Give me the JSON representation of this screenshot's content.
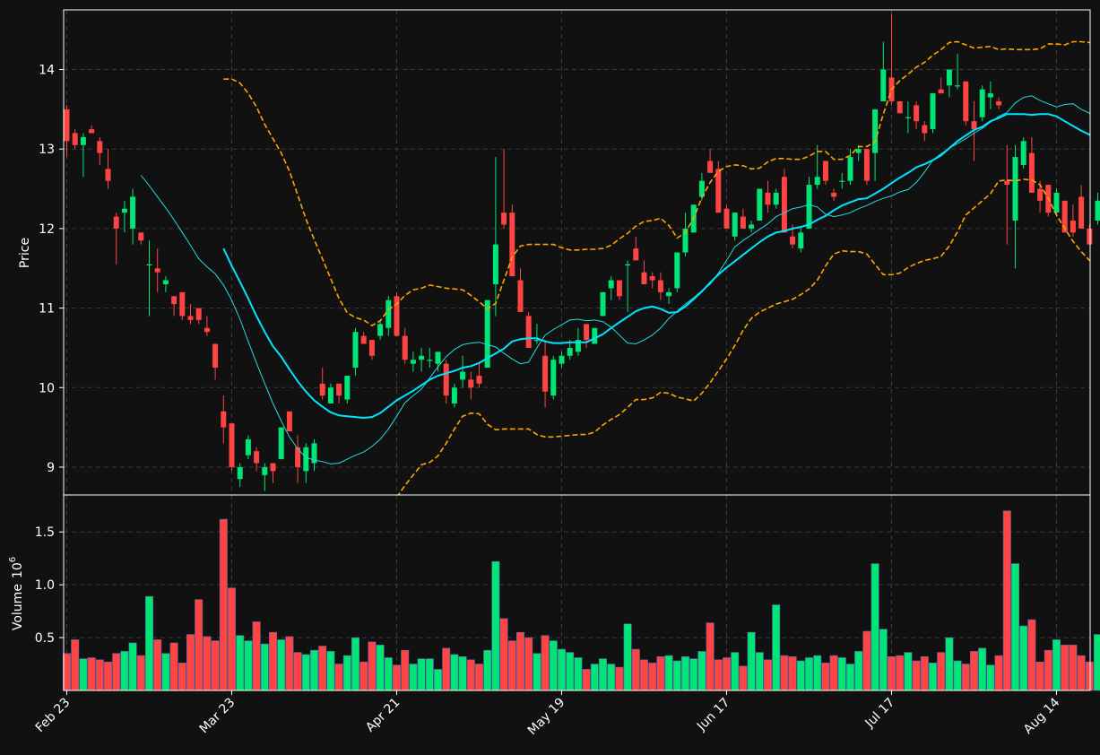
{
  "chart_data": {
    "type": "candlestick",
    "x_tick_labels": [
      "Feb 23",
      "Mar 23",
      "Apr 21",
      "May 19",
      "Jun 17",
      "Jul 17",
      "Aug 14"
    ],
    "x_tick_index": [
      0,
      20,
      40,
      60,
      80,
      100,
      120
    ],
    "price_panel": {
      "ylabel": "Price",
      "ylim": [
        8.65,
        14.75
      ],
      "yticks": [
        9,
        10,
        11,
        12,
        13,
        14
      ],
      "up_color": "#00e676",
      "down_color": "#ff4444"
    },
    "volume_panel": {
      "ylabel": "Volume",
      "scale_label": "10",
      "scale_exponent": "6",
      "ylim": [
        0.0,
        1.85
      ],
      "yticks": [
        0.5,
        1.0,
        1.5
      ],
      "ytick_labels": [
        "0.5",
        "1.0",
        "1.5"
      ]
    },
    "overlays": [
      {
        "key": "ma_short",
        "color": "#22dddd",
        "style": "thin"
      },
      {
        "key": "ma_long",
        "color": "#00e5ff",
        "style": "thick"
      },
      {
        "key": "bb_upper",
        "color": "#ffa500",
        "style": "dashed"
      },
      {
        "key": "bb_lower",
        "color": "#ffa500",
        "style": "dashed"
      }
    ],
    "candles": [
      [
        13.5,
        13.55,
        12.9,
        13.1
      ],
      [
        13.2,
        13.25,
        13.0,
        13.05
      ],
      [
        13.05,
        13.2,
        12.65,
        13.15
      ],
      [
        13.25,
        13.3,
        13.2,
        13.2
      ],
      [
        13.1,
        13.15,
        12.8,
        12.95
      ],
      [
        12.75,
        13.0,
        12.5,
        12.6
      ],
      [
        12.15,
        12.2,
        11.55,
        12.0
      ],
      [
        12.2,
        12.35,
        11.95,
        12.25
      ],
      [
        12.0,
        12.5,
        11.8,
        12.4
      ],
      [
        11.95,
        11.95,
        11.8,
        11.85
      ],
      [
        11.55,
        11.85,
        10.9,
        11.55
      ],
      [
        11.5,
        11.75,
        11.2,
        11.45
      ],
      [
        11.3,
        11.4,
        11.2,
        11.35
      ],
      [
        11.15,
        11.15,
        10.9,
        11.05
      ],
      [
        11.2,
        11.2,
        10.85,
        10.9
      ],
      [
        10.9,
        11.05,
        10.8,
        10.85
      ],
      [
        11.0,
        11.0,
        10.8,
        10.85
      ],
      [
        10.75,
        10.9,
        10.65,
        10.7
      ],
      [
        10.55,
        10.55,
        10.1,
        10.25
      ],
      [
        9.7,
        9.9,
        9.3,
        9.5
      ],
      [
        9.55,
        9.55,
        8.95,
        9.0
      ],
      [
        8.85,
        9.05,
        8.75,
        9.0
      ],
      [
        9.15,
        9.4,
        9.1,
        9.35
      ],
      [
        9.2,
        9.25,
        8.95,
        9.05
      ],
      [
        8.9,
        9.05,
        8.7,
        9.0
      ],
      [
        9.05,
        9.0,
        8.8,
        8.95
      ],
      [
        9.1,
        9.5,
        9.1,
        9.5
      ],
      [
        9.7,
        9.7,
        9.45,
        9.45
      ],
      [
        9.25,
        9.4,
        8.8,
        9.0
      ],
      [
        8.95,
        9.3,
        8.8,
        9.25
      ],
      [
        9.05,
        9.35,
        8.95,
        9.3
      ],
      [
        10.05,
        10.25,
        9.85,
        9.9
      ],
      [
        9.8,
        10.05,
        9.8,
        10.0
      ],
      [
        10.05,
        10.05,
        9.8,
        9.9
      ],
      [
        9.85,
        10.15,
        9.8,
        10.15
      ],
      [
        10.25,
        10.75,
        10.15,
        10.7
      ],
      [
        10.65,
        10.7,
        10.55,
        10.55
      ],
      [
        10.6,
        10.6,
        10.35,
        10.4
      ],
      [
        10.65,
        10.85,
        10.6,
        10.8
      ],
      [
        10.75,
        11.15,
        10.65,
        11.1
      ],
      [
        11.15,
        11.2,
        10.65,
        10.65
      ],
      [
        10.65,
        10.75,
        10.3,
        10.35
      ],
      [
        10.3,
        10.45,
        10.2,
        10.35
      ],
      [
        10.35,
        10.5,
        10.2,
        10.4
      ],
      [
        10.35,
        10.5,
        10.25,
        10.35
      ],
      [
        10.3,
        10.45,
        10.2,
        10.45
      ],
      [
        10.3,
        10.35,
        9.8,
        9.9
      ],
      [
        9.8,
        10.05,
        9.75,
        10.0
      ],
      [
        10.1,
        10.4,
        10.0,
        10.2
      ],
      [
        10.1,
        10.2,
        9.85,
        10.0
      ],
      [
        10.15,
        10.3,
        10.0,
        10.05
      ],
      [
        10.25,
        11.1,
        10.25,
        11.1
      ],
      [
        11.3,
        12.9,
        10.9,
        11.8
      ],
      [
        12.2,
        13.0,
        12.0,
        12.05
      ],
      [
        12.2,
        12.3,
        11.4,
        11.4
      ],
      [
        11.35,
        11.5,
        10.95,
        10.95
      ],
      [
        10.9,
        10.95,
        10.5,
        10.5
      ],
      [
        10.6,
        10.8,
        10.55,
        10.6
      ],
      [
        10.4,
        10.6,
        9.75,
        9.95
      ],
      [
        9.9,
        10.4,
        9.85,
        10.35
      ],
      [
        10.3,
        10.45,
        10.25,
        10.4
      ],
      [
        10.4,
        10.6,
        10.35,
        10.5
      ],
      [
        10.45,
        10.75,
        10.4,
        10.6
      ],
      [
        10.8,
        10.8,
        10.5,
        10.6
      ],
      [
        10.55,
        10.7,
        10.55,
        10.75
      ],
      [
        10.9,
        11.2,
        10.9,
        11.2
      ],
      [
        11.25,
        11.4,
        11.1,
        11.35
      ],
      [
        11.35,
        11.35,
        11.1,
        11.15
      ],
      [
        11.55,
        11.6,
        10.95,
        11.55
      ],
      [
        11.75,
        11.9,
        11.6,
        11.6
      ],
      [
        11.45,
        11.6,
        11.3,
        11.3
      ],
      [
        11.4,
        11.45,
        11.25,
        11.35
      ],
      [
        11.35,
        11.45,
        11.1,
        11.2
      ],
      [
        11.15,
        11.25,
        11.05,
        11.2
      ],
      [
        11.25,
        11.7,
        11.2,
        11.7
      ],
      [
        11.7,
        12.2,
        11.65,
        12.0
      ],
      [
        11.95,
        12.3,
        11.95,
        12.3
      ],
      [
        12.4,
        12.7,
        12.35,
        12.6
      ],
      [
        12.85,
        13.0,
        12.7,
        12.7
      ],
      [
        12.75,
        12.85,
        12.2,
        12.2
      ],
      [
        12.25,
        12.3,
        12.0,
        12.0
      ],
      [
        11.9,
        12.2,
        11.85,
        12.2
      ],
      [
        12.15,
        12.25,
        12.0,
        12.0
      ],
      [
        12.0,
        12.1,
        11.95,
        12.05
      ],
      [
        12.1,
        12.5,
        12.1,
        12.5
      ],
      [
        12.45,
        12.6,
        12.2,
        12.3
      ],
      [
        12.3,
        12.5,
        12.25,
        12.45
      ],
      [
        12.65,
        12.75,
        11.95,
        11.95
      ],
      [
        11.9,
        12.05,
        11.75,
        11.8
      ],
      [
        11.75,
        12.0,
        11.7,
        11.95
      ],
      [
        12.0,
        12.65,
        12.0,
        12.55
      ],
      [
        12.55,
        13.05,
        12.5,
        12.65
      ],
      [
        12.85,
        12.85,
        12.55,
        12.6
      ],
      [
        12.45,
        12.5,
        12.35,
        12.4
      ],
      [
        12.6,
        12.7,
        12.5,
        12.6
      ],
      [
        12.6,
        13.0,
        12.55,
        12.9
      ],
      [
        12.95,
        13.05,
        12.85,
        13.0
      ],
      [
        13.0,
        13.0,
        12.55,
        12.6
      ],
      [
        12.95,
        13.5,
        12.6,
        13.5
      ],
      [
        13.6,
        14.35,
        13.6,
        14.0
      ],
      [
        13.9,
        14.7,
        13.55,
        13.6
      ],
      [
        13.6,
        13.6,
        13.45,
        13.45
      ],
      [
        13.4,
        13.6,
        13.2,
        13.4
      ],
      [
        13.55,
        13.6,
        13.25,
        13.35
      ],
      [
        13.3,
        13.35,
        13.1,
        13.2
      ],
      [
        13.25,
        13.7,
        13.2,
        13.7
      ],
      [
        13.75,
        13.9,
        13.7,
        13.7
      ],
      [
        13.8,
        14.0,
        13.65,
        14.0
      ],
      [
        13.8,
        14.2,
        13.75,
        13.8
      ],
      [
        13.85,
        13.85,
        13.3,
        13.35
      ],
      [
        13.35,
        13.6,
        12.85,
        13.25
      ],
      [
        13.4,
        13.8,
        13.35,
        13.75
      ],
      [
        13.65,
        13.85,
        13.5,
        13.7
      ],
      [
        13.6,
        13.65,
        13.5,
        13.55
      ],
      [
        12.6,
        13.05,
        11.8,
        12.55
      ],
      [
        12.1,
        13.05,
        11.5,
        12.9
      ],
      [
        12.8,
        13.15,
        12.75,
        13.1
      ],
      [
        12.95,
        13.15,
        12.45,
        12.45
      ],
      [
        12.5,
        12.6,
        12.2,
        12.35
      ],
      [
        12.55,
        12.55,
        12.15,
        12.2
      ],
      [
        12.2,
        12.5,
        12.15,
        12.45
      ],
      [
        12.35,
        12.35,
        11.95,
        11.95
      ],
      [
        12.1,
        12.3,
        11.9,
        11.95
      ],
      [
        12.4,
        12.55,
        12.0,
        12.0
      ],
      [
        12.0,
        12.05,
        11.8,
        11.8
      ],
      [
        12.1,
        12.45,
        12.05,
        12.35
      ]
    ],
    "volume": [
      0.35,
      0.48,
      0.3,
      0.31,
      0.29,
      0.27,
      0.35,
      0.37,
      0.45,
      0.33,
      0.89,
      0.48,
      0.35,
      0.45,
      0.26,
      0.53,
      0.86,
      0.51,
      0.47,
      1.62,
      0.97,
      0.52,
      0.47,
      0.65,
      0.44,
      0.55,
      0.48,
      0.51,
      0.36,
      0.34,
      0.38,
      0.42,
      0.37,
      0.25,
      0.33,
      0.5,
      0.27,
      0.46,
      0.43,
      0.31,
      0.24,
      0.38,
      0.25,
      0.3,
      0.3,
      0.2,
      0.4,
      0.34,
      0.32,
      0.29,
      0.25,
      0.38,
      1.22,
      0.68,
      0.47,
      0.55,
      0.5,
      0.35,
      0.52,
      0.47,
      0.39,
      0.36,
      0.31,
      0.2,
      0.25,
      0.3,
      0.25,
      0.22,
      0.63,
      0.39,
      0.29,
      0.26,
      0.32,
      0.33,
      0.28,
      0.32,
      0.3,
      0.37,
      0.64,
      0.29,
      0.31,
      0.36,
      0.23,
      0.55,
      0.36,
      0.29,
      0.81,
      0.33,
      0.32,
      0.28,
      0.31,
      0.33,
      0.26,
      0.33,
      0.31,
      0.25,
      0.37,
      0.56,
      1.2,
      0.58,
      0.32,
      0.33,
      0.36,
      0.28,
      0.32,
      0.26,
      0.36,
      0.5,
      0.28,
      0.25,
      0.37,
      0.4,
      0.24,
      0.33,
      1.7,
      1.2,
      0.61,
      0.67,
      0.27,
      0.38,
      0.48,
      0.43,
      0.43,
      0.33,
      0.27,
      0.53
    ],
    "ma_short_start": 9,
    "ma_short": [
      12.67,
      12.54,
      12.4,
      12.26,
      12.11,
      11.95,
      11.79,
      11.62,
      11.52,
      11.43,
      11.29,
      11.1,
      10.86,
      10.58,
      10.31,
      10.05,
      9.8,
      9.58,
      9.38,
      9.23,
      9.12,
      9.09,
      9.07,
      9.04,
      9.05,
      9.1,
      9.15,
      9.19,
      9.26,
      9.35,
      9.48,
      9.64,
      9.81,
      9.9,
      9.98,
      10.12,
      10.26,
      10.39,
      10.48,
      10.54,
      10.56,
      10.57,
      10.54,
      10.51,
      10.43,
      10.36,
      10.3,
      10.32,
      10.5,
      10.66,
      10.73,
      10.79,
      10.85,
      10.86,
      10.84,
      10.85,
      10.83,
      10.76,
      10.66,
      10.56,
      10.55,
      10.6,
      10.66,
      10.75,
      10.87,
      10.96,
      11.05,
      11.13,
      11.22,
      11.3,
      11.44,
      11.6,
      11.77,
      11.85,
      11.92,
      11.99,
      12.06,
      12.15,
      12.2,
      12.25,
      12.27,
      12.3,
      12.27,
      12.18,
      12.15,
      12.17,
      12.2,
      12.25,
      12.29,
      12.34,
      12.38,
      12.41,
      12.46,
      12.49,
      12.58,
      12.71,
      12.86,
      12.94,
      13.01,
      13.07,
      13.13,
      13.2,
      13.26,
      13.34,
      13.41,
      13.46,
      13.58,
      13.65,
      13.67,
      13.61,
      13.57,
      13.53,
      13.56,
      13.57,
      13.5,
      13.45,
      13.33,
      13.2,
      13.05,
      12.91,
      12.72,
      12.58,
      12.42,
      12.38,
      12.35
    ],
    "ma_long_start": 19,
    "ma_long": [
      11.75,
      11.53,
      11.33,
      11.12,
      10.9,
      10.7,
      10.52,
      10.39,
      10.23,
      10.08,
      9.95,
      9.84,
      9.76,
      9.69,
      9.65,
      9.64,
      9.63,
      9.62,
      9.63,
      9.68,
      9.76,
      9.84,
      9.9,
      9.96,
      10.03,
      10.1,
      10.15,
      10.18,
      10.21,
      10.25,
      10.27,
      10.31,
      10.37,
      10.43,
      10.49,
      10.58,
      10.61,
      10.62,
      10.62,
      10.58,
      10.56,
      10.56,
      10.57,
      10.57,
      10.57,
      10.62,
      10.67,
      10.75,
      10.82,
      10.89,
      10.96,
      11.0,
      11.02,
      10.99,
      10.94,
      10.95,
      11.02,
      11.11,
      11.21,
      11.32,
      11.42,
      11.51,
      11.59,
      11.67,
      11.75,
      11.83,
      11.9,
      11.95,
      11.97,
      12.0,
      12.02,
      12.05,
      12.11,
      12.16,
      12.23,
      12.29,
      12.33,
      12.37,
      12.38,
      12.44,
      12.5,
      12.57,
      12.64,
      12.7,
      12.77,
      12.81,
      12.86,
      12.92,
      13.01,
      13.1,
      13.17,
      13.24,
      13.28,
      13.35,
      13.39,
      13.44,
      13.44,
      13.44,
      13.43,
      13.44,
      13.44,
      13.41,
      13.35,
      13.29,
      13.23,
      13.18,
      13.11,
      13.03,
      12.96,
      12.9,
      12.87
    ],
    "bb_start": 19,
    "bb_upper": [
      13.88,
      13.88,
      13.83,
      13.7,
      13.53,
      13.31,
      13.13,
      12.95,
      12.72,
      12.42,
      12.12,
      11.86,
      11.62,
      11.37,
      11.12,
      10.94,
      10.88,
      10.85,
      10.78,
      10.84,
      10.98,
      11.05,
      11.16,
      11.23,
      11.25,
      11.29,
      11.27,
      11.25,
      11.24,
      11.23,
      11.16,
      11.08,
      10.99,
      11.06,
      11.35,
      11.64,
      11.78,
      11.8,
      11.8,
      11.8,
      11.8,
      11.76,
      11.73,
      11.73,
      11.74,
      11.74,
      11.75,
      11.79,
      11.87,
      11.94,
      12.03,
      12.09,
      12.1,
      12.13,
      12.04,
      11.88,
      11.95,
      12.13,
      12.39,
      12.58,
      12.72,
      12.78,
      12.8,
      12.79,
      12.75,
      12.76,
      12.84,
      12.88,
      12.88,
      12.87,
      12.87,
      12.91,
      12.97,
      12.97,
      12.87,
      12.87,
      12.92,
      13.03,
      13.03,
      13.09,
      13.44,
      13.75,
      13.86,
      13.94,
      14.03,
      14.09,
      14.18,
      14.25,
      14.34,
      14.35,
      14.31,
      14.27,
      14.28,
      14.29,
      14.25,
      14.26,
      14.25,
      14.25,
      14.25,
      14.26,
      14.32,
      14.32,
      14.31,
      14.35,
      14.35,
      14.34,
      14.34,
      14.33,
      14.27
    ],
    "bb_lower": [
      null,
      null,
      null,
      null,
      null,
      null,
      null,
      null,
      null,
      null,
      null,
      null,
      null,
      null,
      null,
      null,
      null,
      null,
      null,
      null,
      null,
      8.62,
      8.77,
      8.9,
      9.03,
      9.06,
      9.14,
      9.3,
      9.48,
      9.64,
      9.68,
      9.67,
      9.54,
      9.47,
      9.48,
      9.48,
      9.48,
      9.48,
      9.41,
      9.38,
      9.38,
      9.39,
      9.4,
      9.41,
      9.41,
      9.44,
      9.53,
      9.6,
      9.66,
      9.75,
      9.85,
      9.85,
      9.87,
      9.94,
      9.93,
      9.88,
      9.86,
      9.83,
      9.93,
      10.06,
      10.21,
      10.36,
      10.53,
      10.72,
      10.87,
      10.95,
      11.0,
      11.05,
      11.08,
      11.11,
      11.17,
      11.24,
      11.35,
      11.53,
      11.68,
      11.72,
      11.71,
      11.71,
      11.68,
      11.55,
      11.42,
      11.42,
      11.44,
      11.51,
      11.56,
      11.6,
      11.62,
      11.65,
      11.78,
      11.96,
      12.17,
      12.26,
      12.35,
      12.44,
      12.6,
      12.61,
      12.6,
      12.62,
      12.61,
      12.55,
      12.38,
      12.17,
      12.0,
      11.84,
      11.71,
      11.6,
      11.56,
      11.54,
      11.5
    ]
  }
}
